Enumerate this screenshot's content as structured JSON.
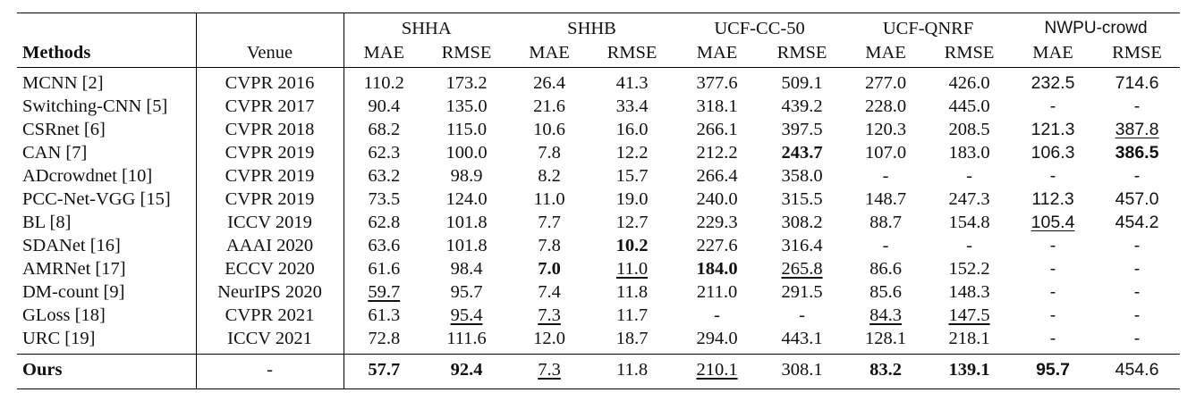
{
  "headers": {
    "methods": "Methods",
    "venue": "Venue",
    "mae": "MAE",
    "rmse": "RMSE",
    "datasets": [
      "SHHA",
      "SHHB",
      "UCF-CC-50",
      "UCF-QNRF",
      "NWPU-crowd"
    ]
  },
  "rows": [
    {
      "method": "MCNN [2]",
      "venue": "CVPR 2016",
      "values": [
        "110.2",
        "173.2",
        "26.4",
        "41.3",
        "377.6",
        "509.1",
        "277.0",
        "426.0",
        "232.5",
        "714.6"
      ],
      "bold": [],
      "underline": []
    },
    {
      "method": "Switching-CNN [5]",
      "venue": "CVPR 2017",
      "values": [
        "90.4",
        "135.0",
        "21.6",
        "33.4",
        "318.1",
        "439.2",
        "228.0",
        "445.0",
        "-",
        "-"
      ],
      "bold": [],
      "underline": []
    },
    {
      "method": "CSRnet [6]",
      "venue": "CVPR 2018",
      "values": [
        "68.2",
        "115.0",
        "10.6",
        "16.0",
        "266.1",
        "397.5",
        "120.3",
        "208.5",
        "121.3",
        "387.8"
      ],
      "bold": [],
      "underline": [
        9
      ]
    },
    {
      "method": "CAN [7]",
      "venue": "CVPR 2019",
      "values": [
        "62.3",
        "100.0",
        "7.8",
        "12.2",
        "212.2",
        "243.7",
        "107.0",
        "183.0",
        "106.3",
        "386.5"
      ],
      "bold": [
        5,
        9
      ],
      "underline": []
    },
    {
      "method": "ADcrowdnet [10]",
      "venue": "CVPR 2019",
      "values": [
        "63.2",
        "98.9",
        "8.2",
        "15.7",
        "266.4",
        "358.0",
        "-",
        "-",
        "-",
        "-"
      ],
      "bold": [],
      "underline": []
    },
    {
      "method": "PCC-Net-VGG [15]",
      "venue": "CVPR 2019",
      "values": [
        "73.5",
        "124.0",
        "11.0",
        "19.0",
        "240.0",
        "315.5",
        "148.7",
        "247.3",
        "112.3",
        "457.0"
      ],
      "bold": [],
      "underline": []
    },
    {
      "method": "BL [8]",
      "venue": "ICCV 2019",
      "values": [
        "62.8",
        "101.8",
        "7.7",
        "12.7",
        "229.3",
        "308.2",
        "88.7",
        "154.8",
        "105.4",
        "454.2"
      ],
      "bold": [],
      "underline": [
        8
      ]
    },
    {
      "method": "SDANet [16]",
      "venue": "AAAI 2020",
      "values": [
        "63.6",
        "101.8",
        "7.8",
        "10.2",
        "227.6",
        "316.4",
        "-",
        "-",
        "-",
        "-"
      ],
      "bold": [
        3
      ],
      "underline": []
    },
    {
      "method": "AMRNet [17]",
      "venue": "ECCV 2020",
      "values": [
        "61.6",
        "98.4",
        "7.0",
        "11.0",
        "184.0",
        "265.8",
        "86.6",
        "152.2",
        "-",
        "-"
      ],
      "bold": [
        2,
        4
      ],
      "underline": [
        3,
        5
      ]
    },
    {
      "method": "DM-count [9]",
      "venue": "NeurIPS 2020",
      "values": [
        "59.7",
        "95.7",
        "7.4",
        "11.8",
        "211.0",
        "291.5",
        "85.6",
        "148.3",
        "-",
        "-"
      ],
      "bold": [],
      "underline": [
        0
      ]
    },
    {
      "method": "GLoss [18]",
      "venue": "CVPR 2021",
      "values": [
        "61.3",
        "95.4",
        "7.3",
        "11.7",
        "-",
        "-",
        "84.3",
        "147.5",
        "-",
        "-"
      ],
      "bold": [],
      "underline": [
        1,
        2,
        6,
        7
      ]
    },
    {
      "method": "URC [19]",
      "venue": "ICCV 2021",
      "values": [
        "72.8",
        "111.6",
        "12.0",
        "18.7",
        "294.0",
        "443.1",
        "128.1",
        "218.1",
        "-",
        "-"
      ],
      "bold": [],
      "underline": []
    }
  ],
  "ours": {
    "method": "Ours",
    "venue": "-",
    "values": [
      "57.7",
      "92.4",
      "7.3",
      "11.8",
      "210.1",
      "308.1",
      "83.2",
      "139.1",
      "95.7",
      "454.6"
    ],
    "bold": [
      0,
      1,
      6,
      7,
      8
    ],
    "underline": [
      2,
      4
    ]
  }
}
